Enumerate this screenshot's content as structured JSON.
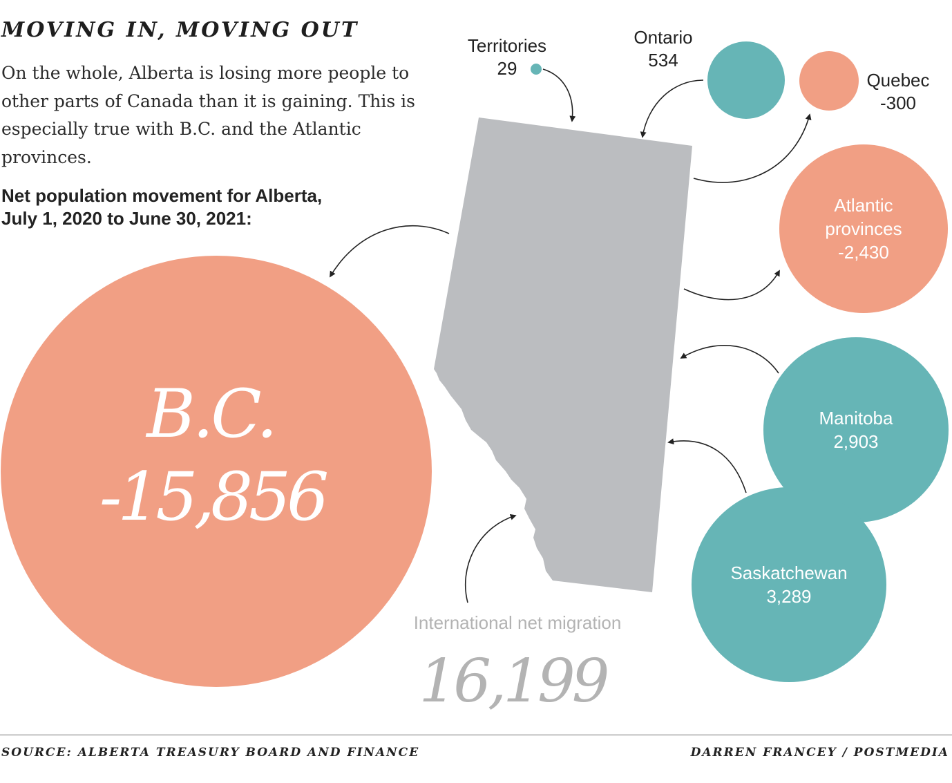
{
  "title": "MOVING IN, MOVING OUT",
  "intro": "On the whole, Alberta is losing more people to other parts of Canada than it is gaining. This is especially true with B.C. and the Atlantic provinces.",
  "subtitle_lines": [
    "Net population movement for Alberta,",
    "July 1, 2020 to June 30, 2021:"
  ],
  "source": "SOURCE: ALBERTA TREASURY BOARD AND FINANCE",
  "credit": "DARREN FRANCEY / POSTMEDIA",
  "colors": {
    "gain": "#66b5b6",
    "loss": "#f19f84",
    "map": "#bbbdc0",
    "arrow": "#222222",
    "international_text": "#b3b3b3"
  },
  "chart_data": {
    "type": "bubble",
    "series": [
      {
        "label_lines": [
          "B.C."
        ],
        "value_label": "-15,856",
        "value": -15856
      },
      {
        "label_lines": [
          "Territories"
        ],
        "value_label": "29",
        "value": 29
      },
      {
        "label_lines": [
          "Ontario"
        ],
        "value_label": "534",
        "value": 534
      },
      {
        "label_lines": [
          "Quebec"
        ],
        "value_label": "-300",
        "value": -300
      },
      {
        "label_lines": [
          "Atlantic",
          "provinces"
        ],
        "value_label": "-2,430",
        "value": -2430
      },
      {
        "label_lines": [
          "Manitoba"
        ],
        "value_label": "2,903",
        "value": 2903
      },
      {
        "label_lines": [
          "Saskatchewan"
        ],
        "value_label": "3,289",
        "value": 3289
      }
    ],
    "international": {
      "label": "International net migration",
      "value_label": "16,199",
      "value": 16199
    }
  }
}
